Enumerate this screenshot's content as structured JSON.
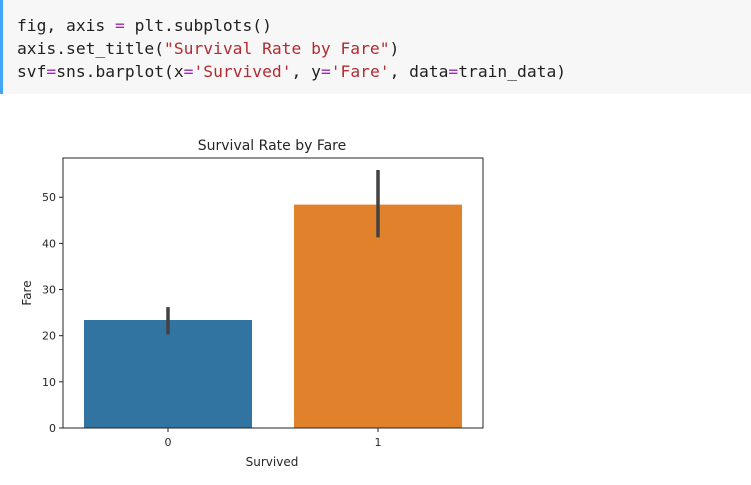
{
  "code": {
    "lines": [
      [
        {
          "t": "fig, axis ",
          "c": "plain"
        },
        {
          "t": "=",
          "c": "op"
        },
        {
          "t": " plt.subplots()",
          "c": "plain"
        }
      ],
      [
        {
          "t": "axis.set_title(",
          "c": "plain"
        },
        {
          "t": "\"Survival Rate by Fare\"",
          "c": "str"
        },
        {
          "t": ")",
          "c": "plain"
        }
      ],
      [
        {
          "t": "svf",
          "c": "plain"
        },
        {
          "t": "=",
          "c": "op"
        },
        {
          "t": "sns.barplot(x",
          "c": "plain"
        },
        {
          "t": "=",
          "c": "op"
        },
        {
          "t": "'Survived'",
          "c": "str"
        },
        {
          "t": ", y",
          "c": "plain"
        },
        {
          "t": "=",
          "c": "op"
        },
        {
          "t": "'Fare'",
          "c": "str"
        },
        {
          "t": ", data",
          "c": "plain"
        },
        {
          "t": "=",
          "c": "op"
        },
        {
          "t": "train_data)",
          "c": "plain"
        }
      ]
    ]
  },
  "colors": {
    "code_bg": "#f7f7f7",
    "accent": "#42a5f5",
    "op": "#9c27b0",
    "str": "#b22b31",
    "bar_0": "#3274a1",
    "bar_1": "#e1812c",
    "errbar": "#424242"
  },
  "chart_data": {
    "type": "bar",
    "title": "Survival Rate by Fare",
    "xlabel": "Survived",
    "ylabel": "Fare",
    "categories": [
      "0",
      "1"
    ],
    "values": [
      23.4,
      48.4
    ],
    "error_bars": [
      [
        20.3,
        26.2
      ],
      [
        41.3,
        55.9
      ]
    ],
    "ylim": [
      0,
      58.5
    ],
    "yticks": [
      0,
      10,
      20,
      30,
      40,
      50
    ],
    "grid": false
  }
}
